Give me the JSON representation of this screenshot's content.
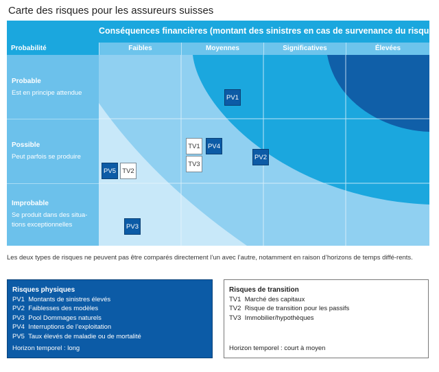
{
  "title": "Carte des risques pour les assureurs suisses",
  "header": {
    "consequences": "Conséquences financières (montant des sinistres en cas de survenance du risque)",
    "probability": "Probabilité",
    "columns": [
      "Faibles",
      "Moyennes",
      "Significatives",
      "Élevées"
    ]
  },
  "rows": [
    {
      "label": "Probable",
      "desc": "Est en principe attendue"
    },
    {
      "label": "Possible",
      "desc": "Peut parfois se produire"
    },
    {
      "label": "Improbable",
      "desc": "Se produit dans des situa-tions exceptionnelles"
    }
  ],
  "colors": {
    "lightest": "#c8e8f9",
    "light": "#90d0f1",
    "cyan": "#1ba7de",
    "dark": "#105fa8",
    "physical": "#0c5ba6",
    "transition": "#ffffff"
  },
  "risks": [
    {
      "id": "PV1",
      "type": "physical",
      "probability": "Probable",
      "consequence": "Moyennes"
    },
    {
      "id": "PV2",
      "type": "physical",
      "probability": "Possible",
      "consequence": "Moyennes/Significatives"
    },
    {
      "id": "PV3",
      "type": "physical",
      "probability": "Improbable",
      "consequence": "Faibles"
    },
    {
      "id": "PV4",
      "type": "physical",
      "probability": "Possible",
      "consequence": "Moyennes"
    },
    {
      "id": "PV5",
      "type": "physical",
      "probability": "Possible",
      "consequence": "Faibles"
    },
    {
      "id": "TV1",
      "type": "transition",
      "probability": "Possible",
      "consequence": "Moyennes"
    },
    {
      "id": "TV2",
      "type": "transition",
      "probability": "Possible",
      "consequence": "Faibles"
    },
    {
      "id": "TV3",
      "type": "transition",
      "probability": "Possible",
      "consequence": "Moyennes"
    }
  ],
  "note": "Les deux types de risques ne peuvent pas être comparés directement l’un avec l’autre, notamment en raison d’horizons de temps diffé-rents.",
  "legend": {
    "physical": {
      "title": "Risques physiques",
      "items": [
        "PV1  Montants de sinistres élevés",
        "PV2  Faiblesses des modèles",
        "PV3  Pool Dommages naturels",
        "PV4  Interruptions de l’exploitation",
        "PV5  Taux élevés de maladie ou de mortalité"
      ],
      "horizon": "Horizon temporel : long"
    },
    "transition": {
      "title": "Risques de transition",
      "items": [
        "TV1  Marché des capitaux",
        "TV2  Risque de transition pour les passifs",
        "TV3  Immobilier/hypothèques"
      ],
      "horizon": "Horizon temporel : court à moyen"
    }
  }
}
